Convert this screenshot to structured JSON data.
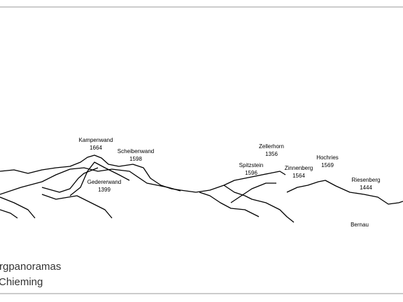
{
  "peaks": [
    {
      "name": "Kampenwand",
      "height": 1664
    },
    {
      "name": "Scheibenwand",
      "height": 1598
    },
    {
      "name": "Gedererwand",
      "height": 1399
    },
    {
      "name": "Zellerhorn",
      "height": 1356
    },
    {
      "name": "Spitzstein",
      "height": 1596
    },
    {
      "name": "Zinnenberg",
      "height": 1564
    },
    {
      "name": "Hochries",
      "height": 1569
    },
    {
      "name": "Riesenberg",
      "height": 1444
    }
  ],
  "places": [
    "Bernau"
  ],
  "caption": [
    "rgpanoramas",
    "Chieming"
  ]
}
